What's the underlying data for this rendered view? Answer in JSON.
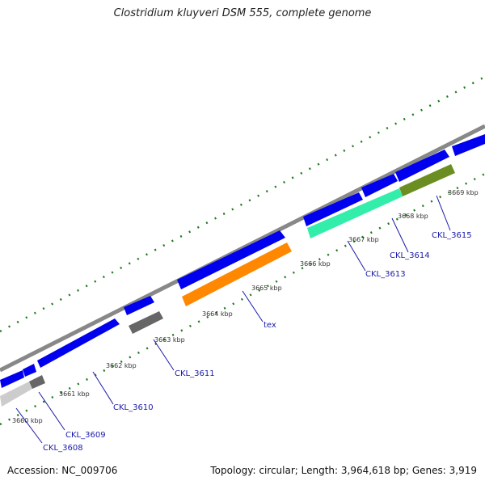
{
  "title": "Clostridium kluyveri DSM 555, complete genome",
  "accession": "Accession: NC_009706",
  "summary": "Topology: circular; Length: 3,964,618 bp; Genes: 3,919",
  "colors": {
    "forward_cds": "#0000ee",
    "backbone": "#888888",
    "tick_green": "#1e7a1e",
    "label_blue": "#1a1aa8"
  },
  "tick_labels": [
    "3660 kbp",
    "3661 kbp",
    "3662 kbp",
    "3663 kbp",
    "3664 kbp",
    "3665 kbp",
    "3666 kbp",
    "3667 kbp",
    "3668 kbp",
    "3669 kbp"
  ],
  "genes": [
    {
      "name": "CKL_3608",
      "color": "#cccccc"
    },
    {
      "name": "CKL_3609",
      "color": "#666666"
    },
    {
      "name": "CKL_3610",
      "color": "#0000ee"
    },
    {
      "name": "CKL_3611",
      "color": "#666666"
    },
    {
      "name": "tex",
      "color": "#ff8800"
    },
    {
      "name": "CKL_3613",
      "color": "#33eeaa"
    },
    {
      "name": "CKL_3614",
      "color": "#33eeaa"
    },
    {
      "name": "CKL_3615",
      "color": "#6b8e23"
    }
  ]
}
